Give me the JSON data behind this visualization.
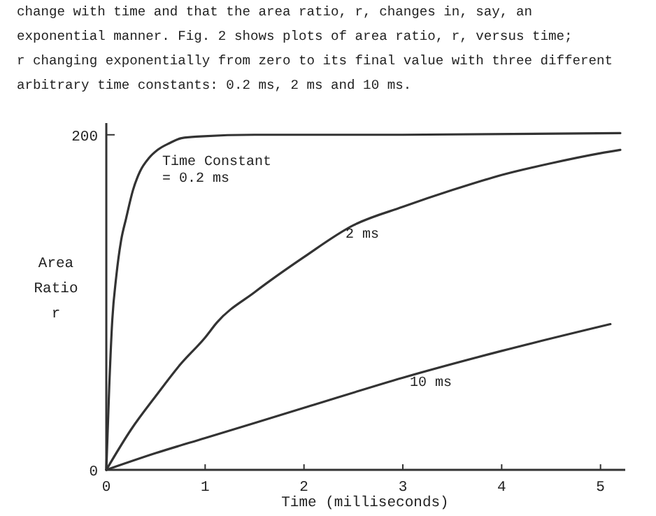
{
  "chart_data": {
    "type": "line",
    "xlabel": "Time (milliseconds)",
    "ylabel": "Area Ratio r",
    "xlim": [
      0,
      5.25
    ],
    "ylim": [
      0,
      207
    ],
    "xticks": [
      0,
      1,
      2,
      3,
      4,
      5
    ],
    "yticks": [
      0,
      200
    ],
    "grid": false,
    "line_style": "solid",
    "series": [
      {
        "color": "#333333",
        "x": [
          0,
          0.03,
          0.06,
          0.1,
          0.15,
          0.2,
          0.27,
          0.34,
          0.43,
          0.52,
          0.64,
          0.76,
          0.95,
          1.5,
          3,
          5.2
        ],
        "values": [
          0,
          50,
          89,
          115,
          137,
          150,
          167,
          178,
          186,
          191,
          195,
          198,
          199,
          200,
          200,
          201
        ]
      },
      {
        "color": "#333333",
        "x": [
          0,
          0.25,
          0.5,
          0.75,
          1,
          1.12,
          1.5,
          2,
          2.5,
          3,
          3.5,
          4,
          4.5,
          5,
          5.2
        ],
        "values": [
          0,
          24,
          44,
          63,
          79,
          88,
          106,
          127,
          146,
          157,
          167,
          176,
          183,
          189,
          191
        ]
      },
      {
        "color": "#333333",
        "x": [
          0,
          0.5,
          1,
          2,
          3,
          4,
          5.1
        ],
        "values": [
          0,
          10,
          19,
          37,
          55,
          71,
          87
        ]
      }
    ],
    "annotations": [
      "change with time and that the area ratio, r, changes in, say, an",
      "exponential manner.   Fig. 2 shows plots of area ratio, r, versus time;",
      "r changing exponentially from zero to its final value with three different",
      "arbitrary time constants:  0.2 ms, 2 ms and 10 ms.",
      "Time Constant = 0.2 ms",
      "2 ms",
      "10 ms"
    ]
  }
}
